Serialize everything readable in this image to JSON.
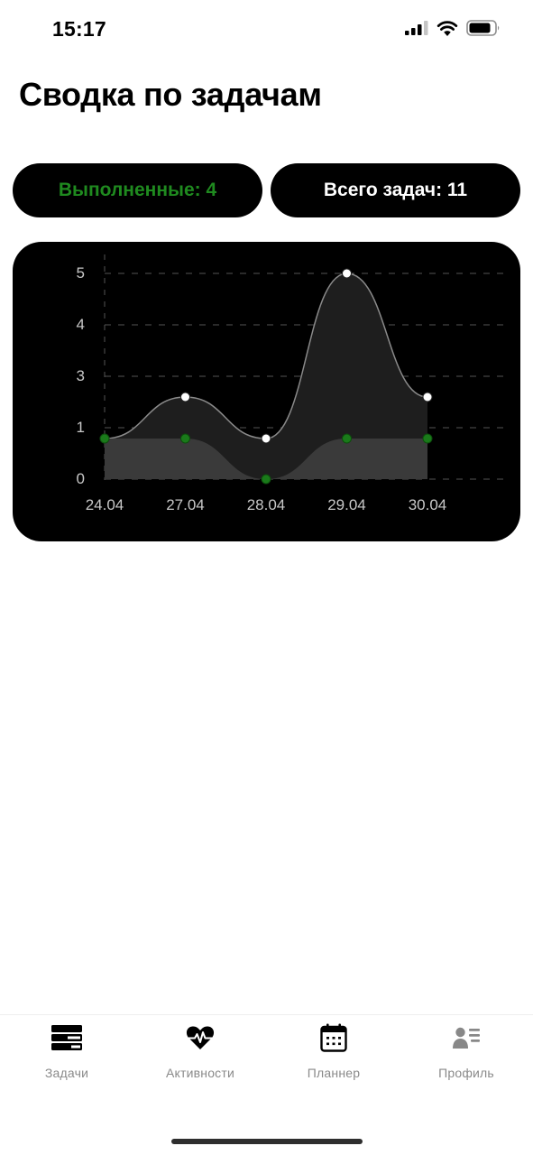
{
  "status_bar": {
    "time": "15:17",
    "signal_icon": "cellular-signal-icon",
    "wifi_icon": "wifi-icon",
    "battery_icon": "battery-icon"
  },
  "header": {
    "title": "Сводка по задачам"
  },
  "summary": {
    "completed_label": "Выполненные: 4",
    "completed_color": "#1f8a1f",
    "total_label": "Всего задач: 11",
    "total_color": "#ffffff"
  },
  "chart_data": {
    "type": "area",
    "title": "",
    "xlabel": "",
    "ylabel": "",
    "categories": [
      "24.04",
      "27.04",
      "28.04",
      "29.04",
      "30.04"
    ],
    "y_ticks": [
      "0",
      "1",
      "3",
      "4",
      "5"
    ],
    "grid": true,
    "series": [
      {
        "values": [
          1,
          2,
          1,
          5,
          2
        ],
        "color": "#ffffff",
        "fill": "#1e1e1e"
      },
      {
        "values": [
          1,
          1,
          0,
          1,
          1
        ],
        "color": "#1a7a1a",
        "fill": "#3a3a3a"
      }
    ]
  },
  "tab_bar": {
    "items": [
      {
        "label": "Задачи",
        "icon": "tasks-list-icon",
        "active": true
      },
      {
        "label": "Активности",
        "icon": "heart-pulse-icon",
        "active": true
      },
      {
        "label": "Планнер",
        "icon": "calendar-icon",
        "active": true
      },
      {
        "label": "Профиль",
        "icon": "profile-card-icon",
        "active": false
      }
    ]
  }
}
